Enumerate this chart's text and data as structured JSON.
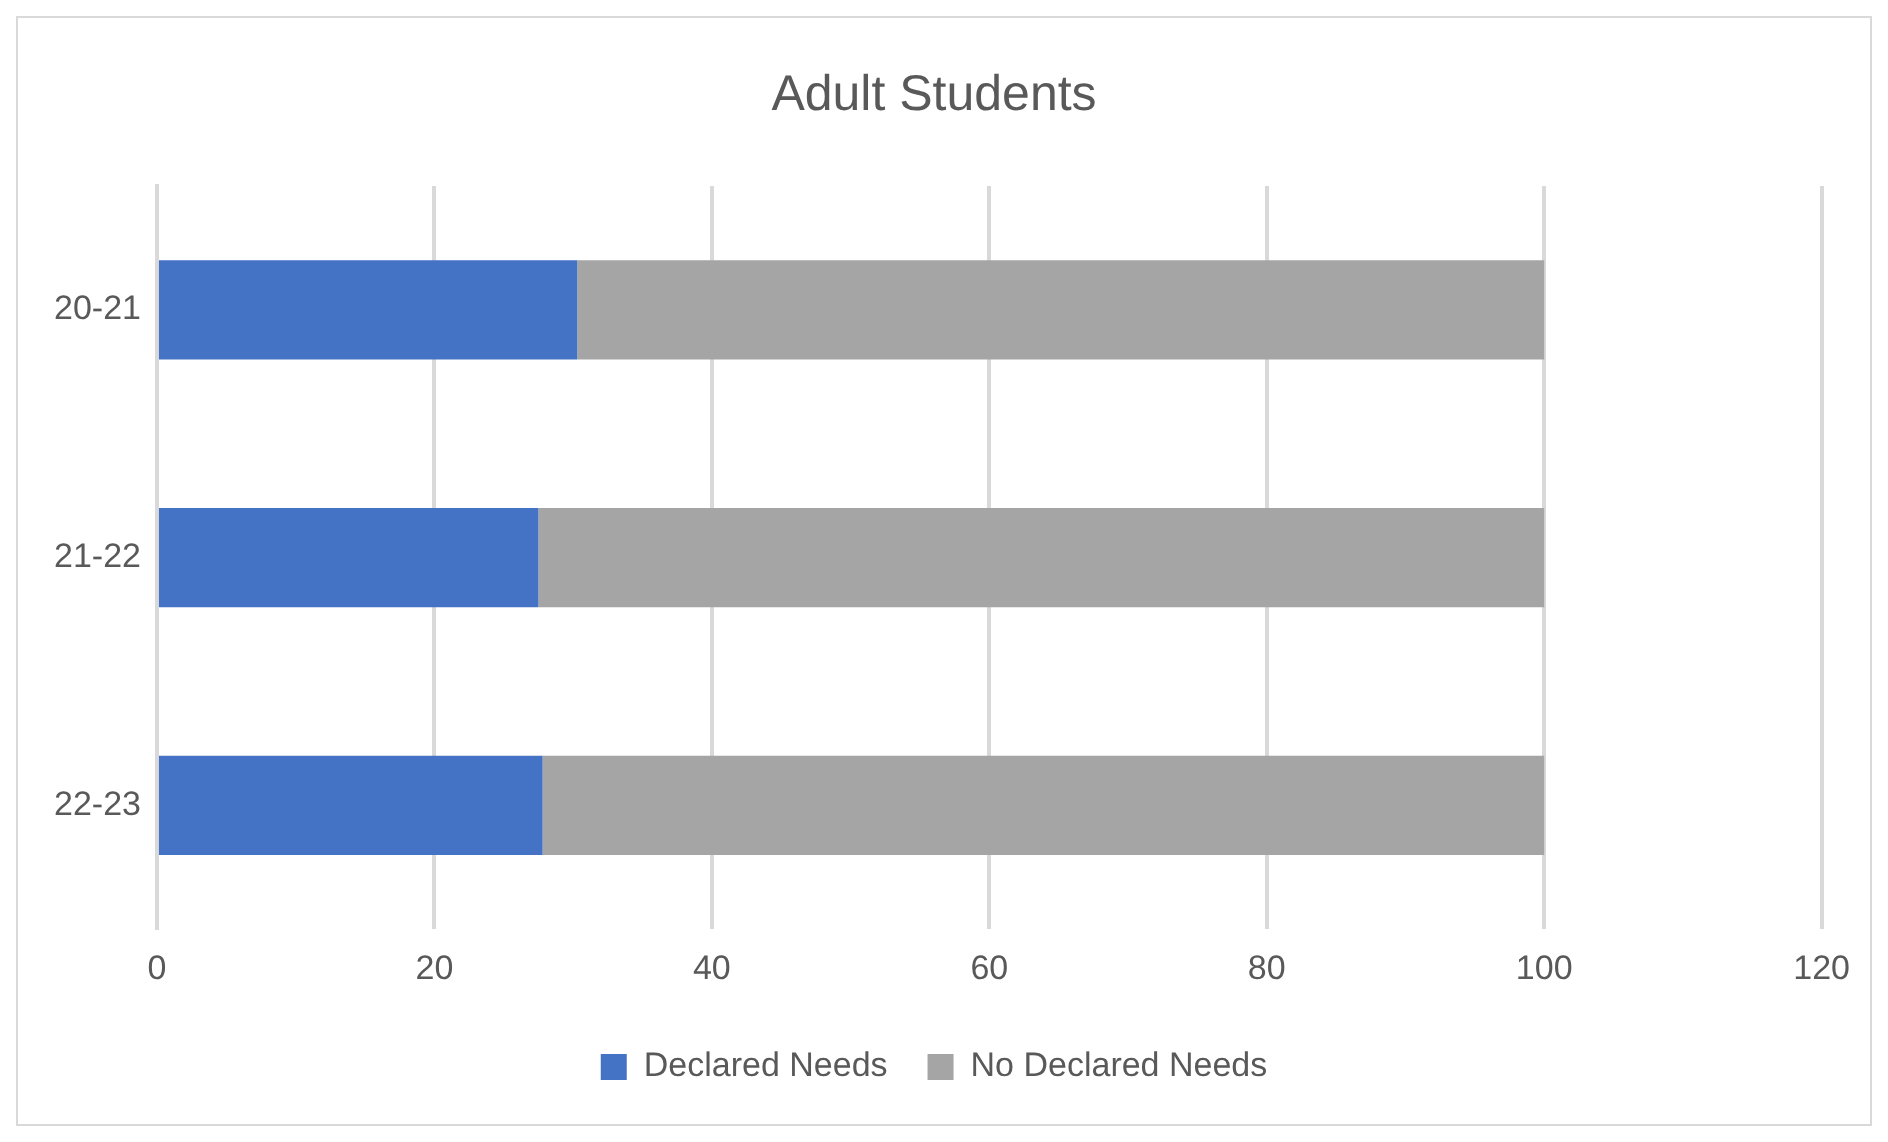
{
  "chart_data": {
    "type": "bar",
    "title": "Adult Students",
    "orientation": "horizontal",
    "stacked": true,
    "categories": [
      "20-21",
      "21-22",
      "22-23"
    ],
    "series": [
      {
        "name": "Declared Needs",
        "color": "#4472c4",
        "values": [
          30.3,
          27.5,
          27.8
        ]
      },
      {
        "name": "No Declared Needs",
        "color": "#a5a5a5",
        "values": [
          69.7,
          72.5,
          72.2
        ]
      }
    ],
    "xlim": [
      0,
      120
    ],
    "xticks": [
      0,
      20,
      40,
      60,
      80,
      100,
      120
    ],
    "grid": "x",
    "legend": "bottom"
  }
}
